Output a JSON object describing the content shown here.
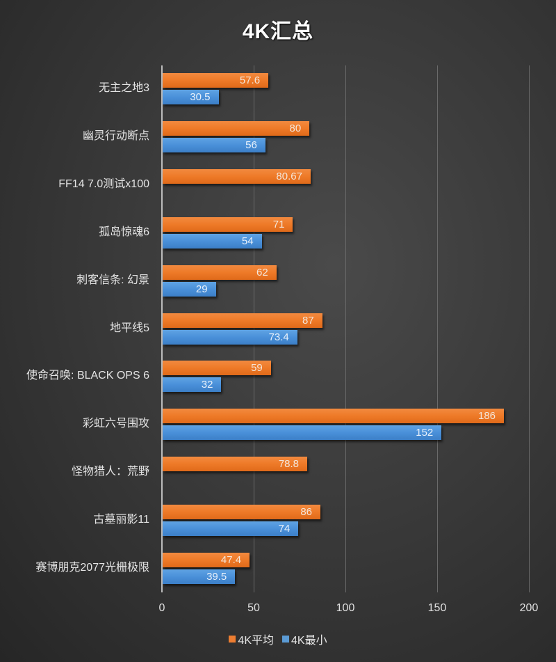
{
  "chart_data": {
    "type": "bar",
    "orientation": "horizontal",
    "title": "4K汇总",
    "categories": [
      "无主之地3",
      "幽灵行动断点",
      "FF14 7.0测试x100",
      "孤岛惊魂6",
      "刺客信条: 幻景",
      "地平线5",
      "使命召唤: BLACK OPS 6",
      "彩虹六号围攻",
      "怪物猎人：荒野",
      "古墓丽影11",
      "赛博朋克2077光栅极限"
    ],
    "series": [
      {
        "name": "4K平均",
        "color": "#ED7D31",
        "values": [
          57.6,
          80,
          80.67,
          71,
          62,
          87,
          59,
          186,
          78.8,
          86,
          47.4
        ]
      },
      {
        "name": "4K最小",
        "color": "#5B9BD5",
        "values": [
          30.5,
          56,
          null,
          54,
          29,
          73.4,
          32,
          152,
          null,
          74,
          39.5
        ]
      }
    ],
    "xlabel": "",
    "ylabel": "",
    "xlim": [
      0,
      200
    ],
    "xticks": [
      "0",
      "50",
      "100",
      "150",
      "200"
    ],
    "grid": true,
    "legend_position": "bottom"
  },
  "legend": {
    "avg_label": "4K平均",
    "min_label": "4K最小"
  }
}
